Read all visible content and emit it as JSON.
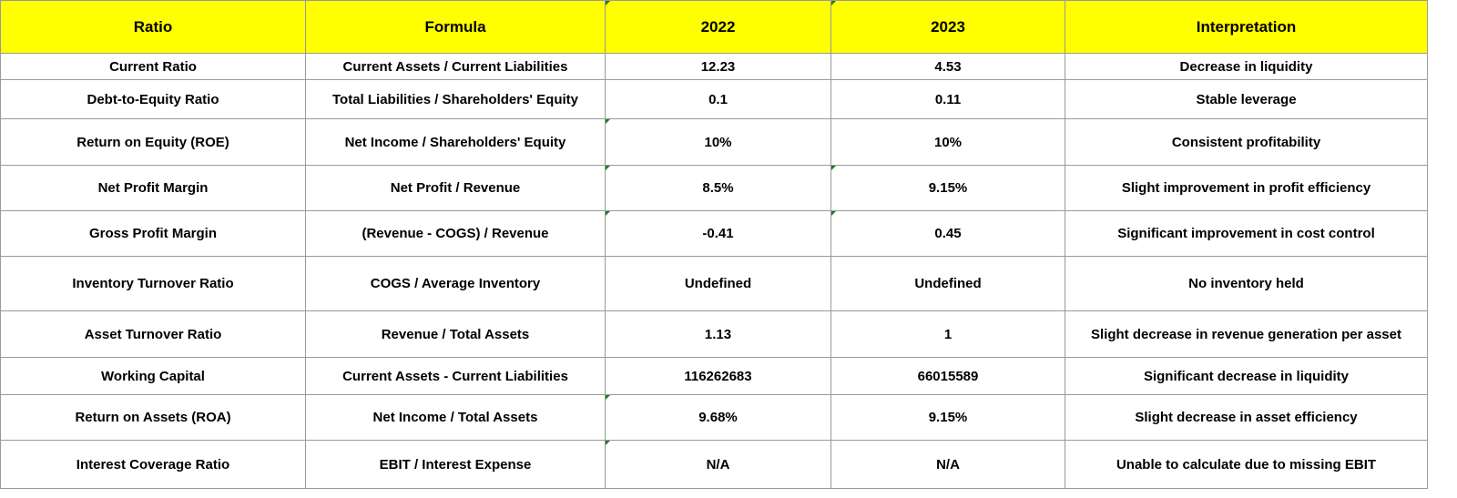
{
  "columns": [
    "Ratio",
    "Formula",
    "2022",
    "2023",
    "Interpretation"
  ],
  "rows": [
    {
      "ratio": "Current Ratio",
      "formula": "Current Assets / Current Liabilities",
      "y2022": "12.23",
      "y2023": "4.53",
      "interpretation": "Decrease in liquidity"
    },
    {
      "ratio": "Debt-to-Equity Ratio",
      "formula": "Total Liabilities / Shareholders' Equity",
      "y2022": "0.1",
      "y2023": "0.11",
      "interpretation": "Stable leverage"
    },
    {
      "ratio": "Return on Equity (ROE)",
      "formula": "Net Income / Shareholders' Equity",
      "y2022": "10%",
      "y2023": "10%",
      "interpretation": "Consistent profitability"
    },
    {
      "ratio": "Net Profit Margin",
      "formula": "Net Profit / Revenue",
      "y2022": "8.5%",
      "y2023": "9.15%",
      "interpretation": "Slight improvement in profit efficiency"
    },
    {
      "ratio": "Gross Profit Margin",
      "formula": "(Revenue - COGS) / Revenue",
      "y2022": "-0.41",
      "y2023": "0.45",
      "interpretation": "Significant improvement in cost control"
    },
    {
      "ratio": "Inventory Turnover Ratio",
      "formula": "COGS / Average Inventory",
      "y2022": "Undefined",
      "y2023": "Undefined",
      "interpretation": "No inventory held"
    },
    {
      "ratio": "Asset Turnover Ratio",
      "formula": "Revenue / Total Assets",
      "y2022": "1.13",
      "y2023": "1",
      "interpretation": "Slight decrease in revenue generation per asset"
    },
    {
      "ratio": "Working Capital",
      "formula": "Current Assets - Current Liabilities",
      "y2022": "116262683",
      "y2023": "66015589",
      "interpretation": "Significant decrease in liquidity"
    },
    {
      "ratio": "Return on Assets (ROA)",
      "formula": "Net Income / Total Assets",
      "y2022": "9.68%",
      "y2023": "9.15%",
      "interpretation": "Slight decrease in asset efficiency"
    },
    {
      "ratio": "Interest Coverage Ratio",
      "formula": "EBIT / Interest Expense",
      "y2022": "N/A",
      "y2023": "N/A",
      "interpretation": "Unable to calculate due to missing EBIT"
    }
  ],
  "colors": {
    "header_background": "#ffff00",
    "grid_line": "#9a9a9a",
    "cell_flag": "#1f7a1f"
  }
}
